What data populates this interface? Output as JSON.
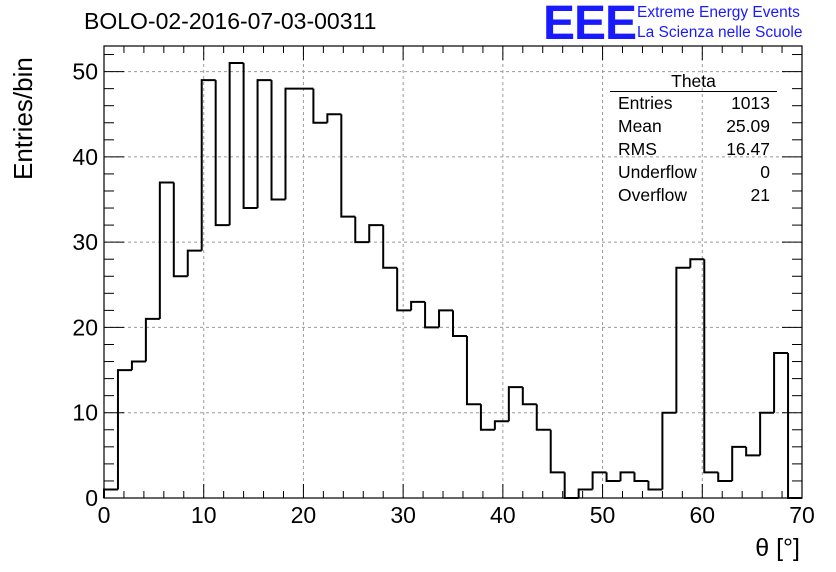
{
  "chart_data": {
    "type": "bar",
    "title": "BOLO-02-2016-07-03-00311",
    "xlabel": "θ [°]",
    "ylabel": "Entries/bin",
    "xlim": [
      0,
      70
    ],
    "ylim": [
      0,
      53
    ],
    "bin_width": 1.4,
    "bin_edges_start": 0,
    "values": [
      1,
      15,
      16,
      21,
      37,
      26,
      29,
      49,
      32,
      51,
      34,
      49,
      35,
      48,
      48,
      44,
      45,
      33,
      30,
      32,
      27,
      22,
      23,
      20,
      22,
      19,
      11,
      8,
      9,
      13,
      11,
      8,
      3,
      0,
      1,
      3,
      2,
      3,
      2,
      1,
      10,
      27,
      28,
      3,
      2,
      6,
      5,
      10,
      17,
      0
    ],
    "x_ticks": [
      "0",
      "10",
      "20",
      "30",
      "40",
      "50",
      "60",
      "70"
    ],
    "x_tick_values": [
      0,
      10,
      20,
      30,
      40,
      50,
      60,
      70
    ],
    "y_ticks": [
      "0",
      "10",
      "20",
      "30",
      "40",
      "50"
    ],
    "y_tick_values": [
      0,
      10,
      20,
      30,
      40,
      50
    ],
    "grid": true,
    "legend": "top-right",
    "colors": {
      "line": "#000000",
      "grid": "#9a9a9a"
    }
  },
  "stats_box": {
    "title": "Theta",
    "rows": [
      {
        "label": "Entries",
        "value": "1013"
      },
      {
        "label": "Mean",
        "value": "25.09"
      },
      {
        "label": "RMS",
        "value": "16.47"
      },
      {
        "label": "Underflow",
        "value": "0"
      },
      {
        "label": "Overflow",
        "value": "21"
      }
    ]
  },
  "logo": {
    "mark": "EEE",
    "line1": "Extreme Energy Events",
    "line2": "La Scienza nelle Scuole",
    "color": "#1a1aff"
  }
}
